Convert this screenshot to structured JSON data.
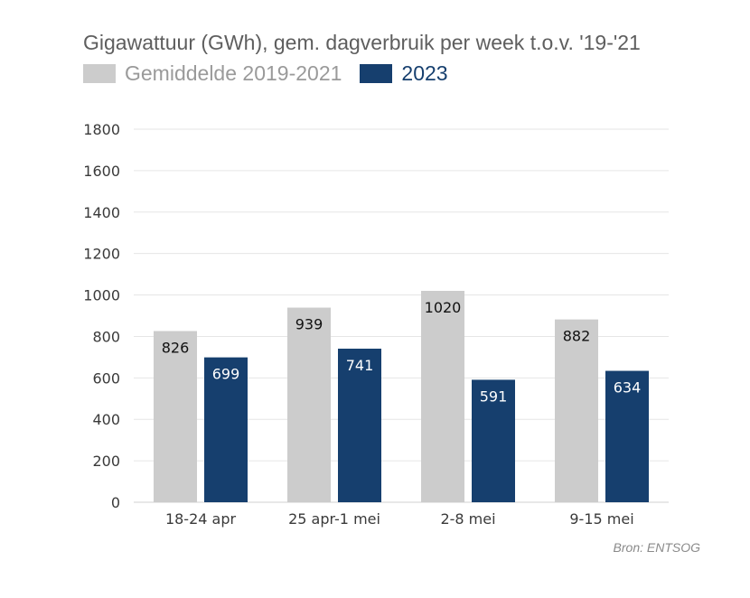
{
  "chart_data": {
    "type": "bar",
    "title": "Gigawattuur (GWh), gem. dagverbruik per week t.o.v. '19-'21",
    "categories": [
      "18-24 apr",
      "25 apr-1 mei",
      "2-8 mei",
      "9-15 mei"
    ],
    "series": [
      {
        "name": "Gemiddelde 2019-2021",
        "values": [
          826,
          939,
          1020,
          882
        ],
        "color": "#cccccc",
        "label_color": "#111111"
      },
      {
        "name": "2023",
        "values": [
          699,
          741,
          591,
          634
        ],
        "color": "#163f6e",
        "label_color": "#ffffff"
      }
    ],
    "ylim": [
      0,
      1800
    ],
    "yticks": [
      0,
      200,
      400,
      600,
      800,
      1000,
      1200,
      1400,
      1600,
      1800
    ],
    "grid": true,
    "legend_position": "top-left",
    "source": "Bron: ENTSOG"
  }
}
